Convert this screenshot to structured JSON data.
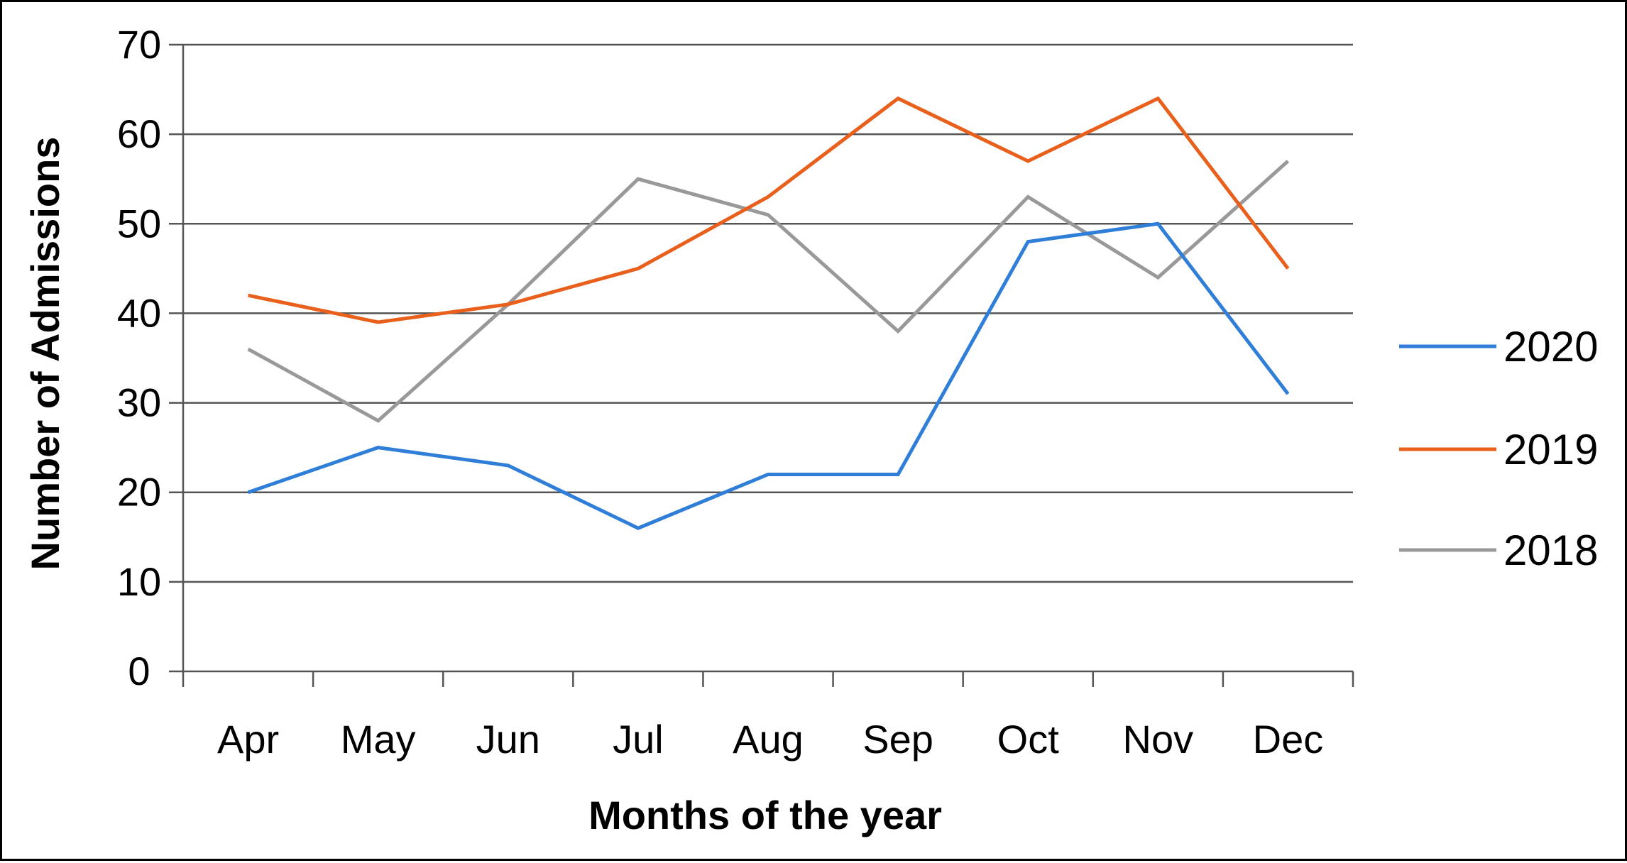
{
  "chart_data": {
    "type": "line",
    "xlabel": "Months of the year",
    "ylabel": "Number of Admissions",
    "categories": [
      "Apr",
      "May",
      "Jun",
      "Jul",
      "Aug",
      "Sep",
      "Oct",
      "Nov",
      "Dec"
    ],
    "ylim": [
      0,
      70
    ],
    "yticks": [
      0,
      10,
      20,
      30,
      40,
      50,
      60,
      70
    ],
    "grid": true,
    "legend_position": "right",
    "series": [
      {
        "name": "2020",
        "color": "#2f7ed8",
        "values": [
          20,
          25,
          23,
          16,
          22,
          22,
          48,
          50,
          31
        ]
      },
      {
        "name": "2019",
        "color": "#e8601c",
        "values": [
          42,
          39,
          41,
          45,
          53,
          64,
          57,
          64,
          45
        ]
      },
      {
        "name": "2018",
        "color": "#999999",
        "values": [
          36,
          28,
          41,
          55,
          51,
          38,
          53,
          44,
          57
        ]
      }
    ]
  }
}
